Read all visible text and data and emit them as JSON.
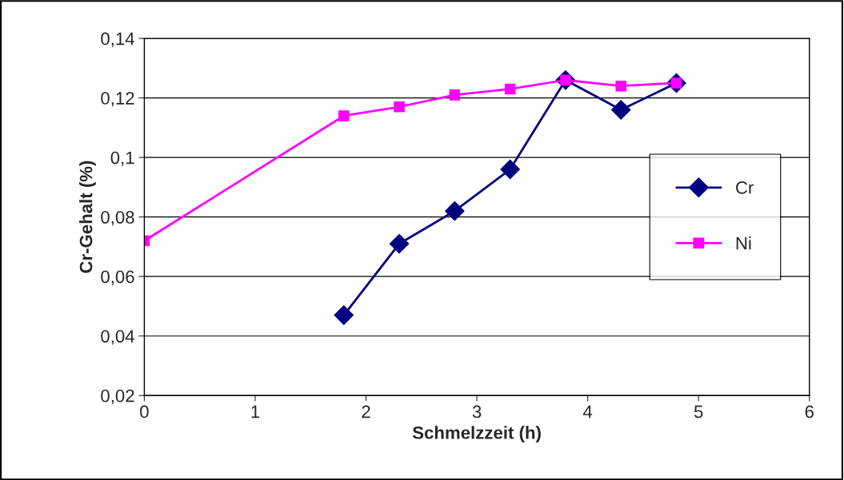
{
  "chart_data": {
    "type": "line",
    "xlabel": "Schmelzzeit (h)",
    "ylabel": "Cr-Gehalt (%)",
    "xlim": [
      0,
      6
    ],
    "xticks": [
      0,
      1,
      2,
      3,
      4,
      5,
      6
    ],
    "ylim": [
      0.02,
      0.14
    ],
    "yticks": [
      {
        "value": 0.02,
        "label": "0,02"
      },
      {
        "value": 0.04,
        "label": "0,04"
      },
      {
        "value": 0.06,
        "label": "0,06"
      },
      {
        "value": 0.08,
        "label": "0,08"
      },
      {
        "value": 0.1,
        "label": "0,1"
      },
      {
        "value": 0.12,
        "label": "0,12"
      },
      {
        "value": 0.14,
        "label": "0,14"
      }
    ],
    "grid": "y",
    "legend": "right",
    "line_style": "solid",
    "series": [
      {
        "name": "Cr",
        "color": "#000080",
        "marker": "diamond",
        "x": [
          1.8,
          2.3,
          2.8,
          3.3,
          3.8,
          4.3,
          4.8
        ],
        "values": [
          0.047,
          0.071,
          0.082,
          0.096,
          0.126,
          0.116,
          0.125
        ]
      },
      {
        "name": "Ni",
        "color": "#ff00ff",
        "marker": "square",
        "x": [
          0,
          1.8,
          2.3,
          2.8,
          3.3,
          3.8,
          4.3,
          4.8
        ],
        "values": [
          0.072,
          0.114,
          0.117,
          0.121,
          0.123,
          0.126,
          0.124,
          0.125
        ]
      }
    ]
  }
}
